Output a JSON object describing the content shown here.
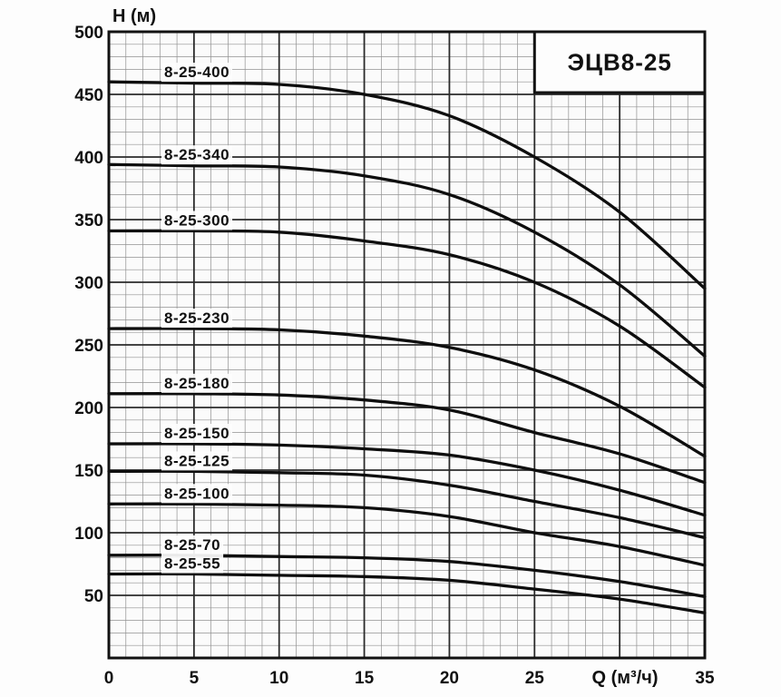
{
  "chart_data": {
    "type": "line",
    "title": "ЭЦВ8-25",
    "x_axis": {
      "label": "Q (м³/ч)",
      "min": 0,
      "max": 35,
      "major_step": 5,
      "minor_step": 1,
      "tick_labels": [
        0,
        5,
        10,
        15,
        20,
        25,
        35
      ],
      "axis_label_replaces_tick": 30
    },
    "y_axis": {
      "label": "Н (м)",
      "min": 0,
      "max": 500,
      "major_step": 50,
      "minor_step": 10,
      "tick_labels": [
        50,
        100,
        150,
        200,
        250,
        300,
        350,
        400,
        450,
        500
      ]
    },
    "x": [
      0,
      5,
      10,
      15,
      20,
      25,
      30,
      35
    ],
    "series": [
      {
        "name": "8-25-400",
        "values": [
          460,
          459,
          458,
          450,
          433,
          400,
          356,
          295
        ]
      },
      {
        "name": "8-25-340",
        "values": [
          394,
          393,
          392,
          385,
          370,
          340,
          298,
          241
        ]
      },
      {
        "name": "8-25-300",
        "values": [
          341,
          341,
          340,
          333,
          322,
          300,
          265,
          216
        ]
      },
      {
        "name": "8-25-230",
        "values": [
          263,
          263,
          262,
          257,
          248,
          230,
          201,
          161
        ]
      },
      {
        "name": "8-25-180",
        "values": [
          211,
          211,
          210,
          206,
          198,
          180,
          163,
          140
        ]
      },
      {
        "name": "8-25-150",
        "values": [
          171,
          171,
          170,
          167,
          162,
          150,
          134,
          114
        ]
      },
      {
        "name": "8-25-125",
        "values": [
          149,
          149,
          148,
          146,
          138,
          125,
          112,
          96
        ]
      },
      {
        "name": "8-25-100",
        "values": [
          123,
          123,
          122,
          120,
          113,
          100,
          89,
          74
        ]
      },
      {
        "name": "8-25-70",
        "values": [
          82,
          82,
          81,
          80,
          77,
          70,
          61,
          49
        ]
      },
      {
        "name": "8-25-55",
        "values": [
          67,
          67,
          66,
          65,
          62,
          55,
          47,
          36
        ]
      }
    ],
    "legend_position": "labels-above-curves-left",
    "grid": "major+minor"
  },
  "colors": {
    "background": "#fdfdfd",
    "plot_background": "#fbfbfb",
    "grid_minor": "#919191",
    "grid_major": "#2b2b2b",
    "frame": "#121212",
    "curve": "#0e0e0e",
    "text": "#111111",
    "label_halo": "#fdfdfd"
  }
}
